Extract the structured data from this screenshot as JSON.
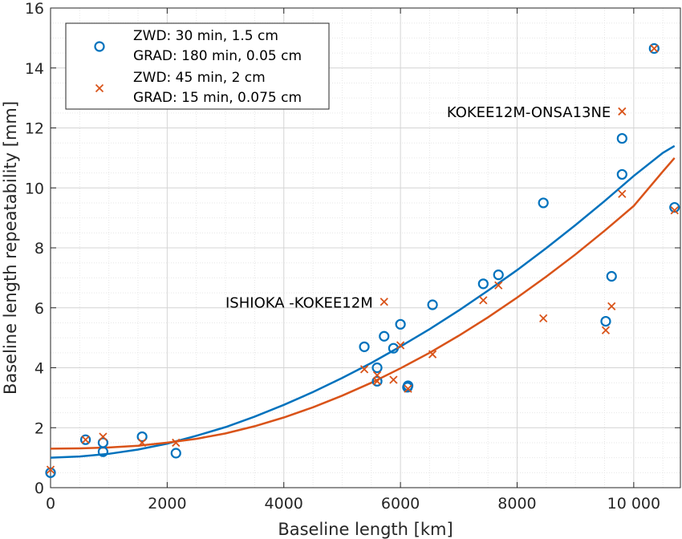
{
  "chart_data": {
    "type": "scatter",
    "xlabel": "Baseline length [km]",
    "ylabel": "Baseline length repeatability [mm]",
    "xlim": [
      0,
      10800
    ],
    "ylim": [
      0,
      16
    ],
    "xticks": [
      0,
      2000,
      4000,
      6000,
      8000,
      10000
    ],
    "xtick_labels": [
      "0",
      "2000",
      "4000",
      "6000",
      "8000",
      "10 000"
    ],
    "yticks": [
      0,
      2,
      4,
      6,
      8,
      10,
      12,
      14,
      16
    ],
    "ytick_labels": [
      "0",
      "2",
      "4",
      "6",
      "8",
      "10",
      "12",
      "14",
      "16"
    ],
    "grid": true,
    "minor_grid": true,
    "legend_position": "top-left",
    "legend": [
      {
        "marker": "circle",
        "color": "#0072BD",
        "line1": "ZWD: 30 min, 1.5 cm",
        "line2": "GRAD: 180 min, 0.05 cm"
      },
      {
        "marker": "x",
        "color": "#D95319",
        "line1": "ZWD: 45 min, 2 cm",
        "line2": "GRAD: 15 min, 0.075 cm"
      }
    ],
    "series": [
      {
        "marker": "circle",
        "color": "#0072BD",
        "points": [
          [
            0,
            0.5
          ],
          [
            600,
            1.6
          ],
          [
            900,
            1.5
          ],
          [
            900,
            1.2
          ],
          [
            1570,
            1.7
          ],
          [
            2150,
            1.15
          ],
          [
            5380,
            4.7
          ],
          [
            5600,
            4.0
          ],
          [
            5600,
            3.55
          ],
          [
            5720,
            5.05
          ],
          [
            5880,
            4.65
          ],
          [
            6000,
            5.45
          ],
          [
            6120,
            3.35
          ],
          [
            6130,
            3.4
          ],
          [
            6550,
            6.1
          ],
          [
            7420,
            6.8
          ],
          [
            7680,
            7.1
          ],
          [
            8450,
            9.5
          ],
          [
            9520,
            5.55
          ],
          [
            9620,
            7.05
          ],
          [
            9800,
            11.65
          ],
          [
            9800,
            10.45
          ],
          [
            10350,
            14.65
          ],
          [
            10700,
            9.35
          ]
        ]
      },
      {
        "marker": "x",
        "color": "#D95319",
        "points": [
          [
            0,
            0.6
          ],
          [
            600,
            1.6
          ],
          [
            900,
            1.7
          ],
          [
            1570,
            1.5
          ],
          [
            2150,
            1.5
          ],
          [
            5380,
            3.95
          ],
          [
            5600,
            3.75
          ],
          [
            5600,
            3.55
          ],
          [
            5720,
            6.2
          ],
          [
            5880,
            3.6
          ],
          [
            6000,
            4.75
          ],
          [
            6130,
            3.3
          ],
          [
            6550,
            4.45
          ],
          [
            7420,
            6.25
          ],
          [
            7680,
            6.75
          ],
          [
            8450,
            5.65
          ],
          [
            9520,
            5.25
          ],
          [
            9620,
            6.05
          ],
          [
            9800,
            9.8
          ],
          [
            9800,
            12.55
          ],
          [
            10350,
            14.65
          ],
          [
            10700,
            9.25
          ]
        ]
      }
    ],
    "fit_curves": [
      {
        "color": "#0072BD",
        "x": [
          0,
          500,
          1000,
          1500,
          2000,
          2500,
          3000,
          3500,
          4000,
          4500,
          5000,
          5500,
          6000,
          6500,
          7000,
          7500,
          8000,
          8500,
          9000,
          9500,
          10000,
          10500,
          10700
        ],
        "y": [
          1.0,
          1.04,
          1.13,
          1.27,
          1.47,
          1.73,
          2.02,
          2.37,
          2.76,
          3.19,
          3.66,
          4.16,
          4.71,
          5.29,
          5.91,
          6.57,
          7.26,
          7.99,
          8.76,
          9.56,
          10.4,
          11.17,
          11.4
        ]
      },
      {
        "color": "#D95319",
        "x": [
          0,
          500,
          1000,
          1500,
          2000,
          2500,
          3000,
          3500,
          4000,
          4500,
          5000,
          5500,
          6000,
          6500,
          7000,
          7500,
          8000,
          8500,
          9000,
          9500,
          10000,
          10500,
          10700
        ],
        "y": [
          1.3,
          1.31,
          1.34,
          1.4,
          1.5,
          1.63,
          1.81,
          2.05,
          2.34,
          2.68,
          3.07,
          3.5,
          3.98,
          4.5,
          5.07,
          5.68,
          6.34,
          7.04,
          7.78,
          8.57,
          9.4,
          10.55,
          11.0
        ]
      }
    ],
    "annotations": [
      {
        "text": "KOKEE12M-ONSA13NE",
        "x": 9800,
        "y": 12.55,
        "anchor": "end"
      },
      {
        "text": "ISHIOKA -KOKEE12M",
        "x": 5720,
        "y": 6.2,
        "anchor": "end"
      }
    ]
  }
}
